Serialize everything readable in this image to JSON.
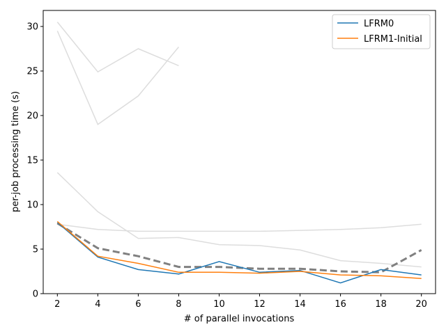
{
  "chart_data": {
    "type": "line",
    "xlabel": "# of parallel invocations",
    "ylabel": "per-job processing time (s)",
    "xlim": [
      1.3,
      20.7
    ],
    "ylim": [
      0,
      31.8
    ],
    "xticks": [
      2,
      4,
      6,
      8,
      10,
      12,
      14,
      16,
      18,
      20
    ],
    "yticks": [
      0,
      5,
      10,
      15,
      20,
      25,
      30
    ],
    "legend_position": "top-right",
    "series": [
      {
        "name": "LFRM0",
        "color": "#1f77b4",
        "x": [
          2,
          4,
          6,
          8,
          10,
          12,
          14,
          16,
          18,
          20
        ],
        "y": [
          8.0,
          4.1,
          2.7,
          2.2,
          3.6,
          2.4,
          2.6,
          1.2,
          2.7,
          2.1
        ]
      },
      {
        "name": "LFRM1-Initial",
        "color": "#ff7f0e",
        "x": [
          2,
          4,
          6,
          8,
          10,
          12,
          14,
          16,
          18,
          20
        ],
        "y": [
          8.1,
          4.2,
          3.4,
          2.4,
          2.4,
          2.3,
          2.5,
          2.1,
          2.0,
          1.7
        ]
      }
    ],
    "background_series": [
      {
        "color": "#dddddd",
        "x": [
          2,
          4,
          6,
          8
        ],
        "y": [
          30.5,
          24.9,
          27.5,
          25.6
        ]
      },
      {
        "color": "#dddddd",
        "x": [
          2,
          4,
          6,
          8
        ],
        "y": [
          29.5,
          19.0,
          22.2,
          27.7
        ]
      },
      {
        "color": "#dddddd",
        "x": [
          2,
          4,
          6,
          8,
          10,
          12,
          14,
          16,
          18,
          20
        ],
        "y": [
          13.6,
          9.2,
          6.2,
          6.3,
          5.5,
          5.4,
          4.9,
          3.7,
          3.4,
          3.0
        ]
      },
      {
        "color": "#dddddd",
        "x": [
          2,
          4,
          6,
          8,
          10,
          12,
          14,
          16,
          18,
          20
        ],
        "y": [
          7.8,
          7.2,
          7.0,
          7.0,
          7.0,
          7.0,
          7.1,
          7.2,
          7.4,
          7.8
        ]
      }
    ],
    "dashed_series": {
      "color": "#808080",
      "x": [
        2,
        4,
        6,
        8,
        10,
        12,
        14,
        16,
        18,
        20
      ],
      "y": [
        7.9,
        5.1,
        4.2,
        3.0,
        3.0,
        2.8,
        2.8,
        2.5,
        2.4,
        4.9
      ]
    }
  }
}
